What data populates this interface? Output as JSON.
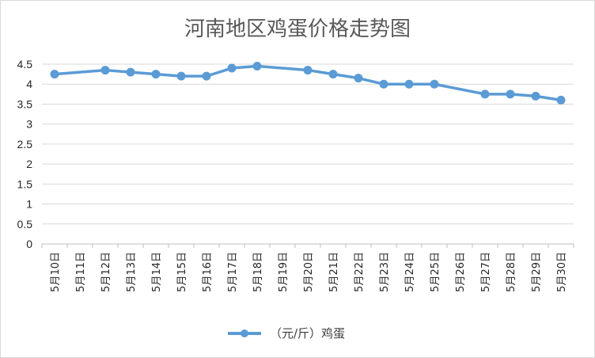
{
  "chart_data": {
    "type": "line",
    "title": "河南地区鸡蛋价格走势图",
    "categories": [
      "5月10日",
      "5月11日",
      "5月12日",
      "5月13日",
      "5月14日",
      "5月15日",
      "5月16日",
      "5月17日",
      "5月18日",
      "5月19日",
      "5月20日",
      "5月21日",
      "5月22日",
      "5月23日",
      "5月24日",
      "5月25日",
      "5月26日",
      "5月27日",
      "5月28日",
      "5月29日",
      "5月30日"
    ],
    "series": [
      {
        "name": "（元/斤）鸡蛋",
        "color": "#5b9bd5",
        "values": [
          4.25,
          null,
          4.35,
          4.3,
          4.25,
          4.2,
          4.2,
          4.4,
          4.45,
          null,
          4.35,
          4.25,
          4.15,
          4.0,
          4.0,
          4.0,
          null,
          3.75,
          3.75,
          3.7,
          3.6
        ]
      }
    ],
    "yticks": [
      "0",
      "0.5",
      "1",
      "1.5",
      "2",
      "2.5",
      "3",
      "3.5",
      "4",
      "4.5"
    ],
    "ylim": [
      0,
      4.5
    ],
    "grid": true,
    "legend": "bottom"
  }
}
